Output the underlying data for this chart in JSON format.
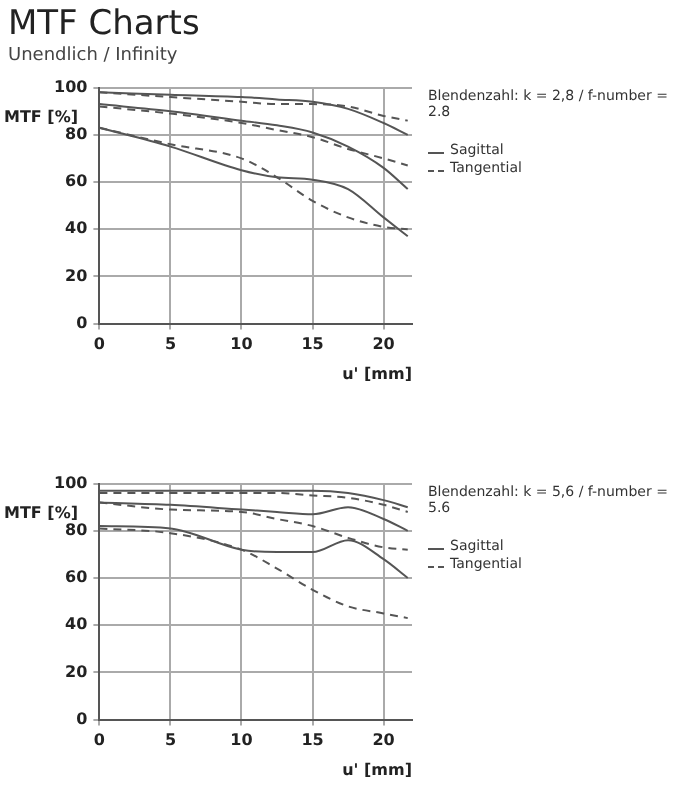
{
  "chart_data": [
    {
      "type": "line",
      "title": "MTF Charts",
      "subtitle": "Unendlich / Infinity",
      "ylabel": "MTF [%]",
      "xlabel": "u' [mm]",
      "annotations": [
        "Blendenzahl: k = 2,8 / f-number = 2.8"
      ],
      "xlim": [
        0,
        22
      ],
      "xticks": [
        0,
        5,
        10,
        15,
        20
      ],
      "ylim": [
        0,
        100
      ],
      "yticks": [
        0,
        20,
        40,
        60,
        80,
        100
      ],
      "grid": true,
      "legend": "right",
      "marker": "none",
      "x": [
        0,
        5,
        10,
        12.5,
        15,
        17.5,
        20,
        21.7
      ],
      "series": [
        {
          "name": "Sagittal",
          "color": "#555555",
          "line_style": "solid",
          "values": [
            98,
            97,
            96,
            95,
            94,
            91,
            85,
            80
          ]
        },
        {
          "name": "Tangential",
          "color": "#555555",
          "line_style": "dashed",
          "values": [
            98,
            96,
            94,
            93,
            93,
            92,
            88,
            86
          ]
        },
        {
          "color": "#555555",
          "line_style": "solid",
          "values": [
            93,
            90,
            86,
            84,
            81,
            75,
            66,
            57
          ]
        },
        {
          "color": "#555555",
          "line_style": "dashed",
          "values": [
            92,
            89,
            85,
            82,
            79,
            74,
            70,
            67
          ]
        },
        {
          "color": "#555555",
          "line_style": "solid",
          "values": [
            83,
            75,
            65,
            62,
            61,
            57,
            45,
            37
          ]
        },
        {
          "color": "#555555",
          "line_style": "dashed",
          "values": [
            83,
            76,
            70,
            62,
            52,
            45,
            41,
            40
          ]
        }
      ]
    },
    {
      "type": "line",
      "ylabel": "MTF [%]",
      "xlabel": "u' [mm]",
      "annotations": [
        "Blendenzahl: k = 5,6 / f-number = 5.6"
      ],
      "xlim": [
        0,
        22
      ],
      "xticks": [
        0,
        5,
        10,
        15,
        20
      ],
      "ylim": [
        0,
        100
      ],
      "yticks": [
        0,
        20,
        40,
        60,
        80,
        100
      ],
      "grid": true,
      "legend": "right",
      "marker": "none",
      "x": [
        0,
        5,
        10,
        12.5,
        15,
        17.5,
        20,
        21.7
      ],
      "series": [
        {
          "name": "Sagittal",
          "color": "#555555",
          "line_style": "solid",
          "values": [
            97,
            97,
            97,
            97,
            97,
            96,
            93,
            90
          ]
        },
        {
          "name": "Tangential",
          "color": "#555555",
          "line_style": "dashed",
          "values": [
            96,
            96,
            96,
            96,
            95,
            94,
            91,
            88
          ]
        },
        {
          "color": "#555555",
          "line_style": "solid",
          "values": [
            92,
            91,
            89,
            88,
            87,
            90,
            85,
            80
          ]
        },
        {
          "color": "#555555",
          "line_style": "dashed",
          "values": [
            92,
            89,
            88,
            85,
            82,
            77,
            73,
            72
          ]
        },
        {
          "color": "#555555",
          "line_style": "solid",
          "values": [
            82,
            81,
            72,
            71,
            71,
            76,
            68,
            60
          ]
        },
        {
          "color": "#555555",
          "line_style": "dashed",
          "values": [
            81,
            79,
            72,
            64,
            55,
            48,
            45,
            43
          ]
        }
      ]
    }
  ]
}
